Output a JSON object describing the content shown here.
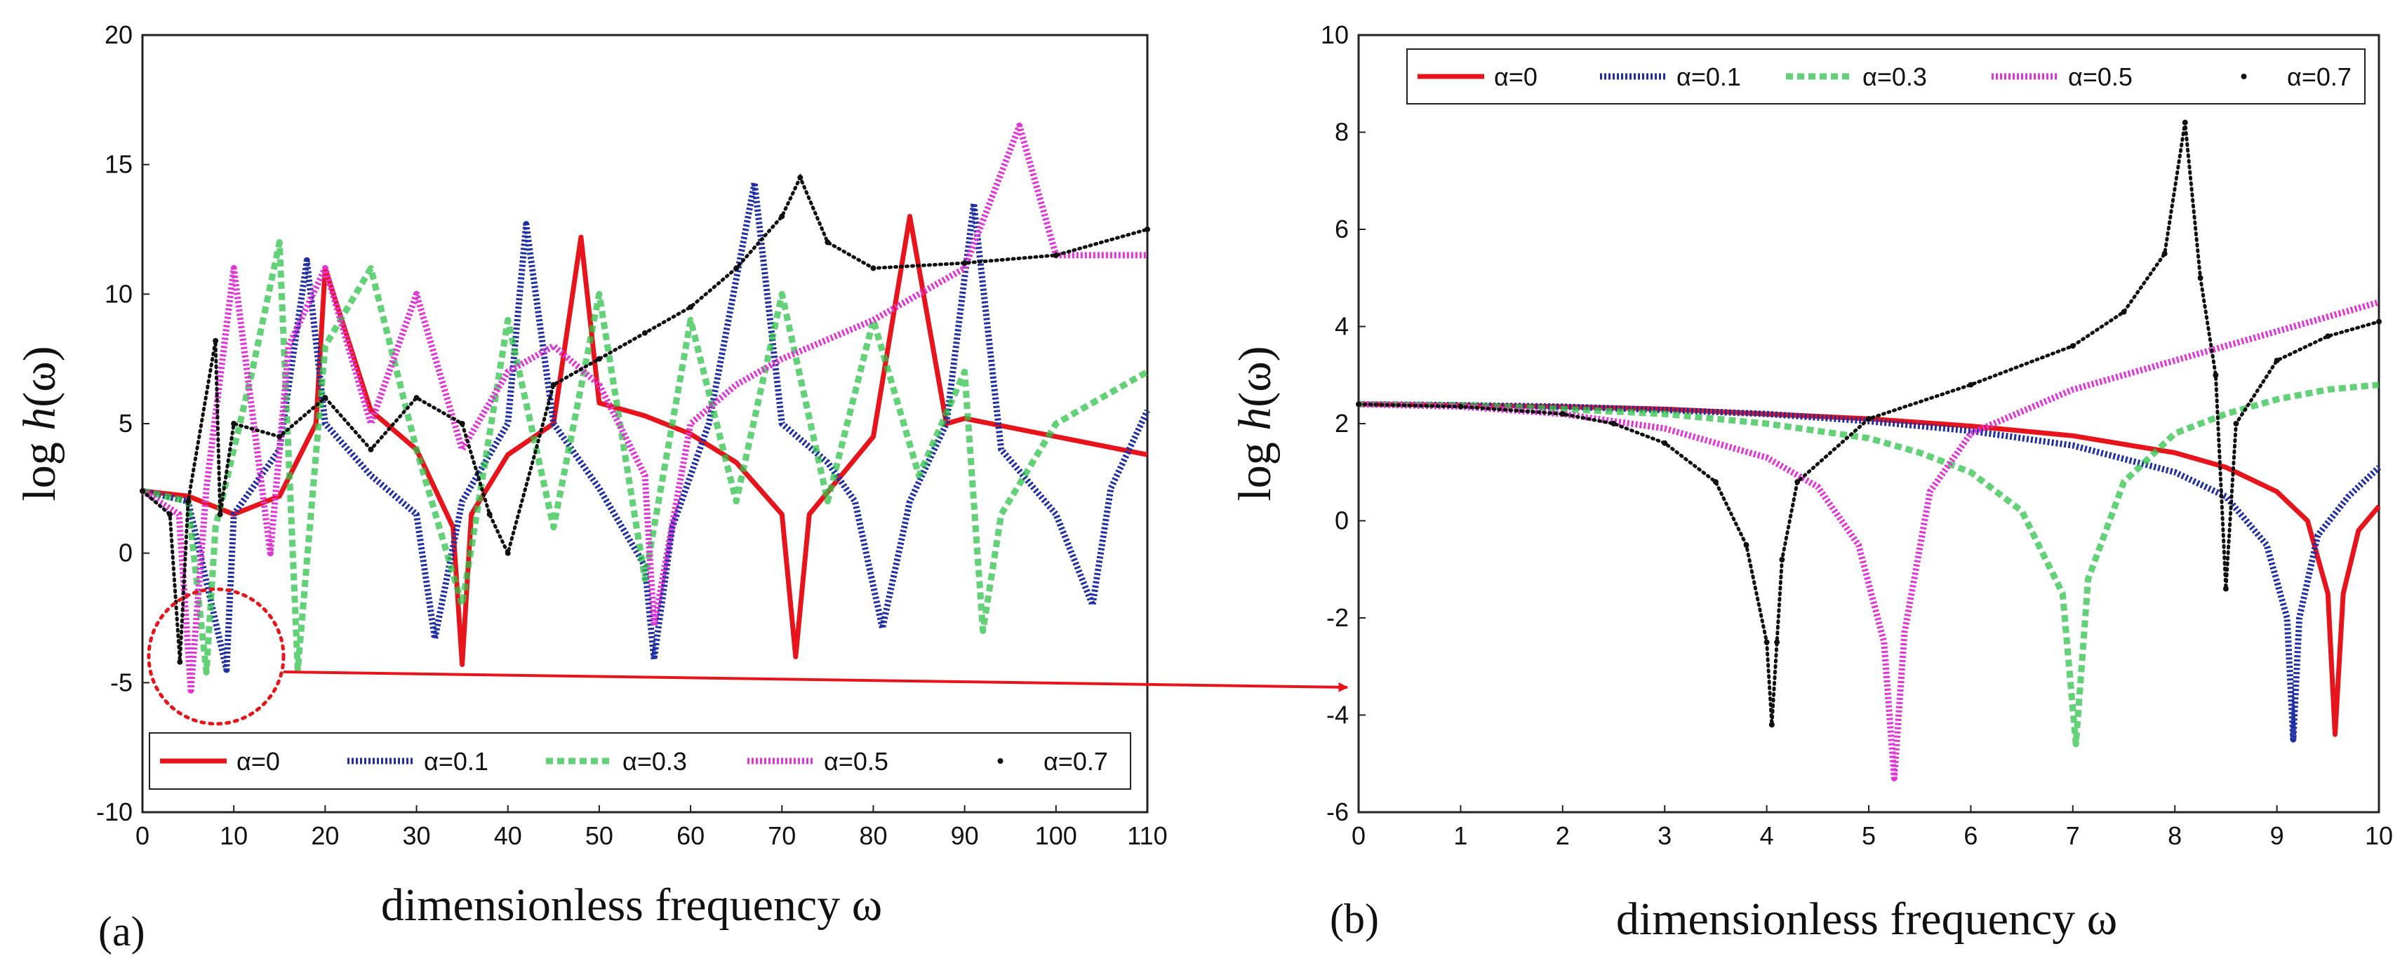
{
  "figure": {
    "arrow_color": "#e8141b",
    "zoom_region_color": "#e8141b"
  },
  "chart_data": [
    {
      "type": "line",
      "panel_label": "(a)",
      "xlabel": "dimensionless frequency ω",
      "ylabel_prefix": "log ",
      "ylabel_var": "h",
      "ylabel_suffix": "(ω)",
      "xlim": [
        0,
        110
      ],
      "ylim": [
        -10,
        20
      ],
      "xticks": [
        0,
        10,
        20,
        30,
        40,
        50,
        60,
        70,
        80,
        90,
        100,
        110
      ],
      "yticks": [
        -10,
        -5,
        0,
        5,
        10,
        15,
        20
      ],
      "legend_position": "bottom",
      "zoom_region": {
        "x": [
          0,
          10
        ],
        "y": [
          -6,
          1
        ]
      },
      "series": [
        {
          "name": "α=0",
          "color": "#e8141b",
          "style": "solid",
          "x": [
            0,
            5,
            10,
            15,
            19,
            20,
            25,
            30,
            34,
            35,
            36,
            40,
            45,
            48,
            50,
            55,
            60,
            65,
            70,
            71.5,
            73,
            80,
            84,
            88,
            90,
            100,
            110
          ],
          "y": [
            2.4,
            2.2,
            1.5,
            2.2,
            5,
            11,
            5.5,
            4,
            1,
            -4.3,
            1.5,
            3.8,
            5,
            12.2,
            5.8,
            5.3,
            4.6,
            3.5,
            1.5,
            -4,
            1.5,
            4.5,
            13,
            5,
            5.2,
            4.5,
            3.8
          ]
        },
        {
          "name": "α=0.1",
          "color": "#1f2fa3",
          "style": "dotted",
          "x": [
            0,
            5,
            9.2,
            10,
            15,
            18,
            20,
            25,
            30,
            32,
            35,
            40,
            42,
            45,
            50,
            55,
            56,
            58,
            62,
            67,
            70,
            75,
            78,
            81,
            84,
            88,
            91,
            94,
            100,
            104,
            106,
            110
          ],
          "y": [
            2.4,
            2,
            -4.5,
            1.5,
            4,
            11.3,
            5,
            3,
            1.5,
            -3.3,
            2,
            5,
            12.7,
            5,
            2.5,
            -0.5,
            -4.1,
            1,
            5,
            14.3,
            5,
            3.5,
            2,
            -2.9,
            2,
            5,
            13.5,
            4,
            1.5,
            -2,
            2.5,
            5.5
          ]
        },
        {
          "name": "α=0.3",
          "color": "#2ec24a",
          "style": "dashed",
          "x": [
            0,
            5,
            7,
            8,
            12,
            15,
            17,
            20,
            25,
            30,
            35,
            40,
            45,
            50,
            55,
            60,
            65,
            70,
            75,
            80,
            85,
            90,
            92,
            94,
            100,
            110
          ],
          "y": [
            2.4,
            2,
            -4.6,
            1,
            7,
            12,
            -4.5,
            8,
            11,
            4,
            -2,
            9,
            1,
            10,
            -1,
            9,
            2,
            10,
            2,
            9,
            3,
            7,
            -3,
            1.5,
            5,
            7
          ]
        },
        {
          "name": "α=0.5",
          "color": "#e233d8",
          "style": "dotted",
          "x": [
            0,
            4,
            5.3,
            7,
            10,
            14,
            16,
            20,
            25,
            30,
            35,
            40,
            45,
            50,
            55,
            56,
            60,
            65,
            70,
            80,
            90,
            96,
            100,
            110
          ],
          "y": [
            2.4,
            1.5,
            -5.3,
            2.5,
            11,
            0,
            8,
            11,
            5,
            10,
            4,
            7,
            8,
            6.5,
            3,
            -2.8,
            5,
            6.5,
            7.5,
            9,
            11,
            16.5,
            11.5,
            11.5
          ]
        },
        {
          "name": "α=0.7",
          "color": "#111111",
          "style": "markers",
          "x": [
            0,
            3,
            4.1,
            5,
            8,
            8.5,
            10,
            15,
            20,
            25,
            30,
            35,
            38,
            40,
            45,
            50,
            55,
            60,
            65,
            70,
            72,
            75,
            80,
            90,
            100,
            110
          ],
          "y": [
            2.4,
            1.5,
            -4.2,
            2,
            8.2,
            1.5,
            5,
            4.5,
            6,
            4,
            6,
            5,
            1.5,
            0,
            6.5,
            7.5,
            8.5,
            9.5,
            11,
            13,
            14.5,
            12,
            11,
            11.2,
            11.5,
            12.5
          ]
        }
      ]
    },
    {
      "type": "line",
      "panel_label": "(b)",
      "xlabel": "dimensionless frequency ω",
      "ylabel_prefix": "log ",
      "ylabel_var": "h",
      "ylabel_suffix": "(ω)",
      "xlim": [
        0,
        10
      ],
      "ylim": [
        -6,
        10
      ],
      "xticks": [
        0,
        1,
        2,
        3,
        4,
        5,
        6,
        7,
        8,
        9,
        10
      ],
      "yticks": [
        -6,
        -4,
        -2,
        0,
        2,
        4,
        6,
        8,
        10
      ],
      "legend_position": "top",
      "series": [
        {
          "name": "α=0",
          "color": "#e8141b",
          "style": "solid",
          "x": [
            0,
            1,
            2,
            3,
            4,
            5,
            6,
            7,
            8,
            8.5,
            9,
            9.3,
            9.5,
            9.57,
            9.65,
            9.8,
            10
          ],
          "y": [
            2.4,
            2.38,
            2.35,
            2.3,
            2.2,
            2.1,
            1.95,
            1.75,
            1.4,
            1.1,
            0.6,
            0,
            -1.5,
            -4.4,
            -1.5,
            -0.2,
            0.3
          ]
        },
        {
          "name": "α=0.1",
          "color": "#1f2fa3",
          "style": "dotted",
          "x": [
            0,
            1,
            2,
            3,
            4,
            5,
            6,
            7,
            8,
            8.5,
            8.9,
            9.1,
            9.16,
            9.22,
            9.4,
            9.7,
            10
          ],
          "y": [
            2.4,
            2.38,
            2.35,
            2.28,
            2.2,
            2.05,
            1.85,
            1.55,
            1,
            0.5,
            -0.5,
            -2,
            -4.5,
            -2,
            -0.3,
            0.5,
            1.1
          ]
        },
        {
          "name": "α=0.3",
          "color": "#2ec24a",
          "style": "dashed",
          "x": [
            0,
            1,
            2,
            3,
            4,
            5,
            5.5,
            6,
            6.5,
            6.9,
            7.03,
            7.15,
            7.5,
            8,
            8.5,
            9,
            9.5,
            10
          ],
          "y": [
            2.4,
            2.38,
            2.3,
            2.2,
            2,
            1.7,
            1.4,
            1,
            0.2,
            -1.5,
            -4.6,
            -1.2,
            0.8,
            1.8,
            2.2,
            2.5,
            2.7,
            2.8
          ]
        },
        {
          "name": "α=0.5",
          "color": "#e233d8",
          "style": "dotted",
          "x": [
            0,
            1,
            2,
            3,
            4,
            4.5,
            4.9,
            5.15,
            5.25,
            5.35,
            5.6,
            6,
            7,
            8,
            9,
            10
          ],
          "y": [
            2.4,
            2.35,
            2.2,
            1.9,
            1.3,
            0.7,
            -0.5,
            -2.5,
            -5.3,
            -2.3,
            0.6,
            1.8,
            2.7,
            3.3,
            3.9,
            4.5
          ]
        },
        {
          "name": "α=0.7",
          "color": "#111111",
          "style": "markers",
          "x": [
            0,
            1,
            2,
            2.5,
            3,
            3.5,
            3.8,
            4,
            4.05,
            4.1,
            4.15,
            4.3,
            5,
            6,
            7,
            7.5,
            7.9,
            8.1,
            8.25,
            8.4,
            8.5,
            8.6,
            9,
            9.5,
            10
          ],
          "y": [
            2.4,
            2.35,
            2.2,
            2,
            1.6,
            0.8,
            -0.5,
            -2.5,
            -4.2,
            -2.5,
            -0.8,
            0.8,
            2.1,
            2.8,
            3.6,
            4.3,
            5.5,
            8.2,
            5,
            3,
            -1.4,
            2,
            3.3,
            3.8,
            4.1
          ]
        }
      ]
    }
  ]
}
